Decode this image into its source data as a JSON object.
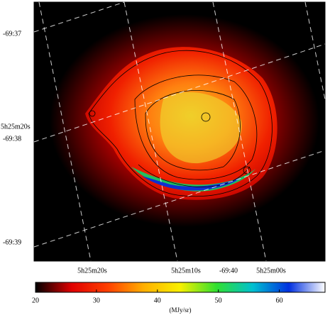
{
  "image": {
    "left_labels": [
      "-69:37",
      "5h25m20s",
      "-69:38",
      "-69:39"
    ],
    "bottom_labels": [
      "5h25m20s",
      "5h25m10s",
      "-69:40",
      "5h25m00s"
    ]
  },
  "colorbar": {
    "label": "(MJy/sr)",
    "lim": [
      20,
      67.5
    ],
    "ticks": [
      20,
      30,
      40,
      50,
      60
    ],
    "colormap": [
      "#000000",
      "#e00000",
      "#ff4000",
      "#ffb000",
      "#f8f000",
      "#30e030",
      "#00c0d0",
      "#0030e0",
      "#ffffff"
    ]
  }
}
